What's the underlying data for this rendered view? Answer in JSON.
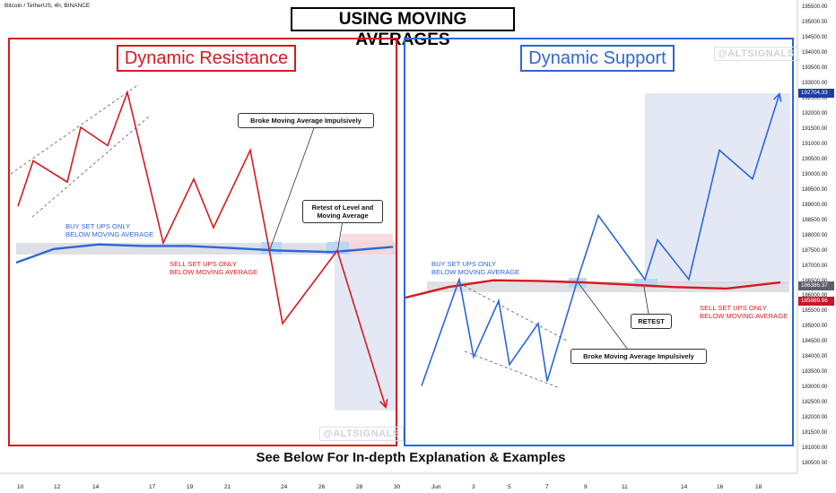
{
  "header": {
    "symbol": "Bitcoin / TetherUS, 4h, BINANCE",
    "title": "USING MOVING AVERAGES"
  },
  "footer": "See Below For In-depth Explanation & Examples",
  "colors": {
    "resistance": "#d71920",
    "support": "#2c66d8",
    "zone": "#e3e8f4",
    "ma_band": "#d0d3da"
  },
  "chart_data": [
    {
      "type": "line",
      "panel": "left",
      "title": "Dynamic Resistance",
      "watermark": "@ALTSIGNALS",
      "series": [
        {
          "role": "price",
          "color": "#d71920",
          "values": [
            188950,
            190450,
            189750,
            191550,
            190950,
            192700,
            187750,
            189850,
            188250,
            190800,
            187550,
            185100,
            187500,
            182350
          ]
        },
        {
          "role": "moving_average",
          "color": "#2c66d8",
          "values": [
            187100,
            187550,
            187700,
            187650,
            187650,
            187580,
            187500,
            187450,
            187620
          ]
        }
      ],
      "callouts": [
        "Broke Moving Average Impulsively",
        "Retest of Level and\nMoving Average"
      ],
      "notes": {
        "buy": [
          "BUY SET UPS ONLY",
          "BELOW MOVING AVERAGE"
        ],
        "sell": [
          "SELL SET UPS ONLY",
          "BELOW MOVING AVERAGE"
        ]
      }
    },
    {
      "type": "line",
      "panel": "right",
      "title": "Dynamic Support",
      "watermark": "@ALTSIGNALS",
      "series": [
        {
          "role": "price",
          "color": "#2c66d8",
          "values": [
            183050,
            186550,
            184000,
            185850,
            183750,
            185100,
            183200,
            186650,
            188650,
            186550,
            187850,
            186550,
            190800,
            189850,
            192650
          ]
        },
        {
          "role": "moving_average",
          "color": "#d71920",
          "values": [
            185950,
            186300,
            186520,
            186500,
            186450,
            186380,
            186300,
            186250,
            186450
          ]
        }
      ],
      "callouts": [
        "RETEST",
        "Broke Moving Average Impulsively"
      ],
      "notes": {
        "buy": [
          "BUY SET UPS ONLY",
          "BELOW MOVING AVERAGE"
        ],
        "sell": [
          "SELL SET UPS ONLY",
          "BELOW MOVING AVERAGE"
        ]
      }
    }
  ],
  "axes": {
    "y_ticks": [
      "195500.00",
      "195000.00",
      "194500.00",
      "194000.00",
      "193500.00",
      "193000.00",
      "192500.00",
      "192000.00",
      "191500.00",
      "191000.00",
      "190500.00",
      "190000.00",
      "189500.00",
      "189000.00",
      "188500.00",
      "188000.00",
      "187500.00",
      "187000.00",
      "186500.00",
      "186000.00",
      "185500.00",
      "185000.00",
      "184500.00",
      "184000.00",
      "183500.00",
      "183000.00",
      "182500.00",
      "182000.00",
      "181500.00",
      "181000.00",
      "180500.00"
    ],
    "x_ticks": [
      "10",
      "12",
      "14",
      "17",
      "19",
      "21",
      "24",
      "26",
      "28",
      "30",
      "Jun",
      "3",
      "5",
      "7",
      "9",
      "11",
      "14",
      "16",
      "18"
    ],
    "price_tags": [
      "192704.33",
      "186386.37",
      "185889.96"
    ]
  }
}
